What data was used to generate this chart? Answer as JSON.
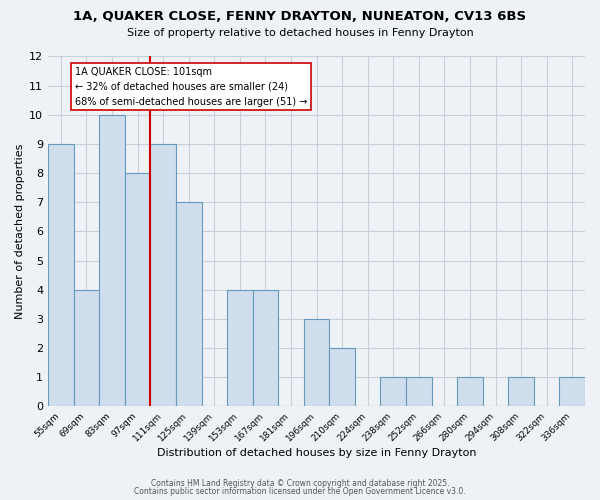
{
  "title": "1A, QUAKER CLOSE, FENNY DRAYTON, NUNEATON, CV13 6BS",
  "subtitle": "Size of property relative to detached houses in Fenny Drayton",
  "xlabel": "Distribution of detached houses by size in Fenny Drayton",
  "ylabel": "Number of detached properties",
  "bar_color": "#cfdded",
  "bar_edge_color": "#6699bb",
  "bins": [
    "55sqm",
    "69sqm",
    "83sqm",
    "97sqm",
    "111sqm",
    "125sqm",
    "139sqm",
    "153sqm",
    "167sqm",
    "181sqm",
    "196sqm",
    "210sqm",
    "224sqm",
    "238sqm",
    "252sqm",
    "266sqm",
    "280sqm",
    "294sqm",
    "308sqm",
    "322sqm",
    "336sqm"
  ],
  "values": [
    9,
    4,
    10,
    8,
    9,
    7,
    0,
    4,
    4,
    0,
    3,
    2,
    0,
    1,
    1,
    0,
    1,
    0,
    1,
    0,
    1
  ],
  "vline_x_index": 3.5,
  "vline_color": "#cc0000",
  "annotation_text": "1A QUAKER CLOSE: 101sqm\n← 32% of detached houses are smaller (24)\n68% of semi-detached houses are larger (51) →",
  "annotation_box_color": "#ffffff",
  "annotation_box_edge": "#cc0000",
  "ylim": [
    0,
    12
  ],
  "yticks": [
    0,
    1,
    2,
    3,
    4,
    5,
    6,
    7,
    8,
    9,
    10,
    11,
    12
  ],
  "grid_color": "#c8d0d8",
  "background_color": "#eef2f7",
  "footer1": "Contains HM Land Registry data © Crown copyright and database right 2025.",
  "footer2": "Contains public sector information licensed under the Open Government Licence v3.0."
}
